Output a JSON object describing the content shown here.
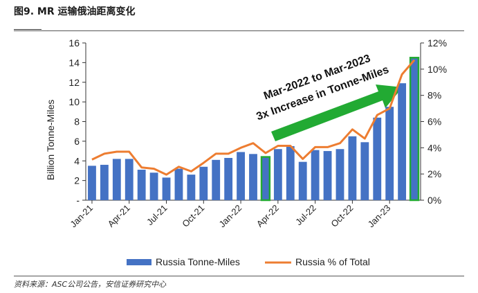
{
  "figure": {
    "title": "图9. MR 运输俄油距离变化",
    "source": "资料来源：ASC公司公告，安信证券研究中心"
  },
  "chart_data": {
    "type": "bar",
    "categories": [
      "Jan-21",
      "Feb-21",
      "Mar-21",
      "Apr-21",
      "May-21",
      "Jun-21",
      "Jul-21",
      "Aug-21",
      "Sep-21",
      "Oct-21",
      "Nov-21",
      "Dec-21",
      "Jan-22",
      "Feb-22",
      "Mar-22",
      "Apr-22",
      "May-22",
      "Jun-22",
      "Jul-22",
      "Aug-22",
      "Sep-22",
      "Oct-22",
      "Nov-22",
      "Dec-22",
      "Jan-23",
      "Feb-23",
      "Mar-23"
    ],
    "x_tick_labels": [
      "Jan-21",
      "Apr-21",
      "Jul-21",
      "Oct-21",
      "Jan-22",
      "Apr-22",
      "Jul-22",
      "Oct-22",
      "Jan-23"
    ],
    "series": [
      {
        "name": "Russia Tonne-Miles",
        "axis": "left",
        "kind": "bar",
        "color": "#4472C4",
        "values": [
          3.5,
          3.6,
          4.2,
          4.2,
          3.1,
          2.8,
          2.3,
          3.2,
          2.6,
          3.4,
          4.1,
          4.3,
          4.9,
          4.7,
          4.4,
          5.2,
          5.5,
          3.9,
          5.1,
          5.0,
          5.2,
          6.5,
          5.9,
          8.4,
          9.5,
          11.9,
          14.5
        ]
      },
      {
        "name": "Russia % of Total",
        "axis": "right",
        "kind": "line",
        "color": "#ED7D31",
        "values": [
          3.1,
          3.55,
          3.7,
          3.7,
          2.5,
          2.4,
          1.95,
          2.55,
          2.2,
          2.85,
          3.55,
          3.55,
          4.0,
          4.35,
          3.6,
          4.15,
          4.15,
          3.15,
          4.05,
          4.05,
          4.35,
          5.4,
          4.7,
          6.5,
          7.0,
          9.6,
          10.7
        ]
      }
    ],
    "highlighted_categories": [
      "Mar-22",
      "Mar-23"
    ],
    "highlight_color": "#22AA33",
    "ylabel": "Billion Tonne-Miles",
    "ylim": [
      0,
      16
    ],
    "yticks": [
      "-",
      "2",
      "4",
      "6",
      "8",
      "10",
      "12",
      "14",
      "16"
    ],
    "y2lim": [
      0,
      12
    ],
    "y2ticks": [
      "0%",
      "2%",
      "4%",
      "6%",
      "8%",
      "10%",
      "12%"
    ],
    "annotation": {
      "line1": "Mar-2022 to Mar-2023",
      "line2": "3x Increase in Tonne-Miles",
      "arrow_color": "#22AA33"
    },
    "legend_position": "bottom",
    "grid": false
  }
}
